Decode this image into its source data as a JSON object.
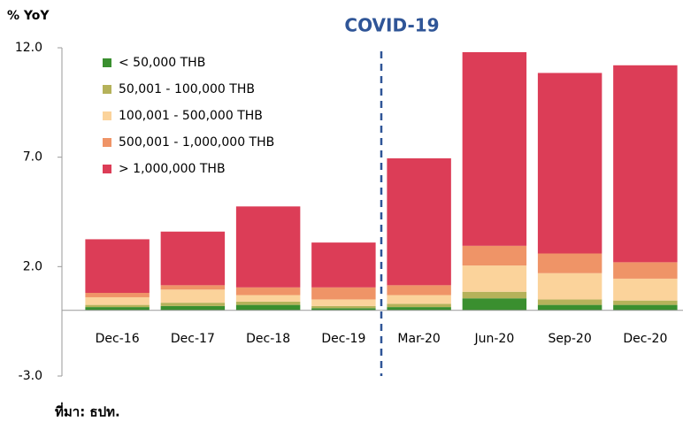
{
  "chart_data": {
    "type": "stacked_bar",
    "y_label": "% YoY",
    "annotation": "COVID-19",
    "source": "ที่มา: ธปท.",
    "categories": [
      "Dec-16",
      "Dec-17",
      "Dec-18",
      "Dec-19",
      "Mar-20",
      "Jun-20",
      "Sep-20",
      "Dec-20"
    ],
    "series": [
      {
        "name": "< 50,000 THB",
        "color": "#3a8f2f",
        "values": [
          0.15,
          0.2,
          0.25,
          0.1,
          0.15,
          0.55,
          0.25,
          0.25
        ]
      },
      {
        "name": "50,001 - 100,000 THB",
        "color": "#b5b25a",
        "values": [
          0.1,
          0.15,
          0.15,
          0.1,
          0.15,
          0.3,
          0.25,
          0.2
        ]
      },
      {
        "name": "100,001 - 500,000 THB",
        "color": "#fbd39b",
        "values": [
          0.35,
          0.6,
          0.3,
          0.3,
          0.4,
          1.2,
          1.2,
          1.0
        ]
      },
      {
        "name": "500,001 - 1,000,000 THB",
        "color": "#ef9467",
        "values": [
          0.2,
          0.2,
          0.35,
          0.55,
          0.45,
          0.9,
          0.9,
          0.75
        ]
      },
      {
        "name": "> 1,000,000 THB",
        "color": "#dc3d57",
        "values": [
          2.45,
          2.45,
          3.7,
          2.05,
          5.8,
          8.85,
          8.25,
          9.0
        ]
      }
    ],
    "ylim": [
      -3,
      12
    ],
    "yticks": [
      {
        "value": -3,
        "label": "-3.0"
      },
      {
        "value": 2,
        "label": "2.0"
      },
      {
        "value": 7,
        "label": "7.0"
      },
      {
        "value": 12,
        "label": "12.0"
      }
    ]
  }
}
